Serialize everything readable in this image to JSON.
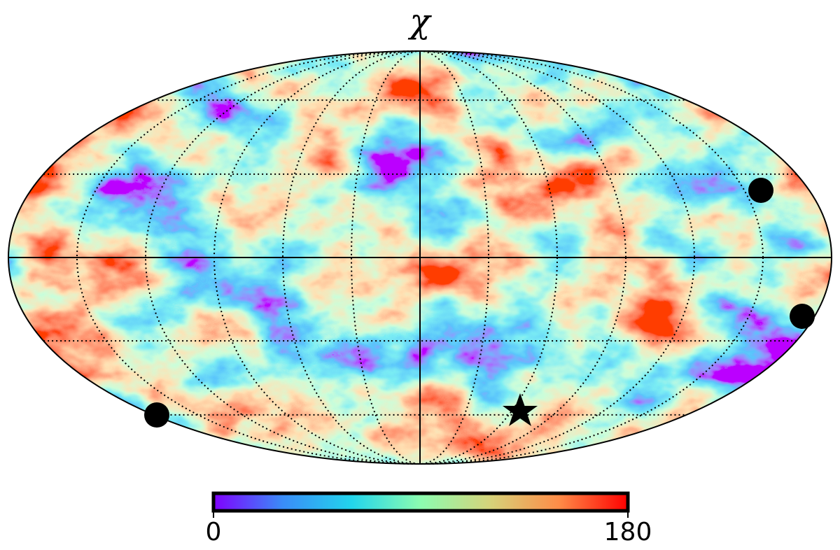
{
  "chart_data": {
    "type": "mollweide_map",
    "title": "χ",
    "colorbar": {
      "lim": [
        0,
        180
      ],
      "ticks": [
        0,
        180
      ],
      "colors": [
        "#8000ff",
        "#3a8cf8",
        "#22d5ec",
        "#8cfdb0",
        "#d5d37a",
        "#ff8c48",
        "#ff0000"
      ]
    }
  }
}
